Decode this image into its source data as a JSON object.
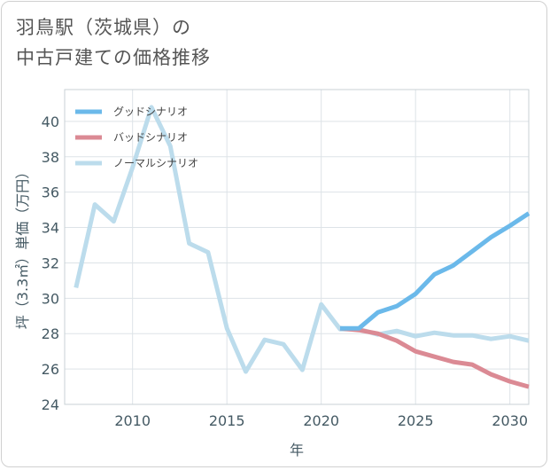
{
  "title": {
    "line1": "羽鳥駅（茨城県）の",
    "line2": "中古戸建ての価格推移"
  },
  "chart_data": {
    "type": "line",
    "xlabel": "年",
    "ylabel": "坪（3.3㎡）単価（万円）",
    "xlim": [
      2006.4,
      2031
    ],
    "ylim": [
      24,
      41.8
    ],
    "xticks": [
      2010,
      2015,
      2020,
      2025,
      2030
    ],
    "yticks": [
      24,
      26,
      28,
      30,
      32,
      34,
      36,
      38,
      40
    ],
    "grid": true,
    "legend_position": "top-left",
    "series": [
      {
        "name": "グッドシナリオ",
        "color": "#6bb9ea",
        "x": [
          2021,
          2022,
          2023,
          2024,
          2025,
          2026,
          2027,
          2028,
          2029,
          2030,
          2031
        ],
        "y": [
          28.3,
          28.3,
          29.2,
          29.55,
          30.25,
          31.35,
          31.85,
          32.65,
          33.45,
          34.1,
          34.8
        ]
      },
      {
        "name": "バッドシナリオ",
        "color": "#db8a94",
        "x": [
          2021,
          2022,
          2023,
          2024,
          2025,
          2026,
          2027,
          2028,
          2029,
          2030,
          2031
        ],
        "y": [
          28.3,
          28.2,
          28.0,
          27.6,
          27.0,
          26.7,
          26.4,
          26.25,
          25.7,
          25.3,
          25.0
        ]
      },
      {
        "name": "ノーマルシナリオ",
        "color": "#bcdcec",
        "x": [
          2007,
          2008,
          2009,
          2010,
          2011,
          2012,
          2013,
          2014,
          2015,
          2016,
          2017,
          2018,
          2019,
          2020,
          2021,
          2022,
          2023,
          2024,
          2025,
          2026,
          2027,
          2028,
          2029,
          2030,
          2031
        ],
        "y": [
          30.6,
          35.3,
          34.35,
          37.4,
          40.8,
          38.6,
          33.1,
          32.6,
          28.3,
          25.85,
          27.65,
          27.4,
          25.95,
          29.65,
          28.25,
          28.25,
          27.95,
          28.15,
          27.85,
          28.05,
          27.9,
          27.9,
          27.7,
          27.85,
          27.6
        ]
      }
    ]
  }
}
